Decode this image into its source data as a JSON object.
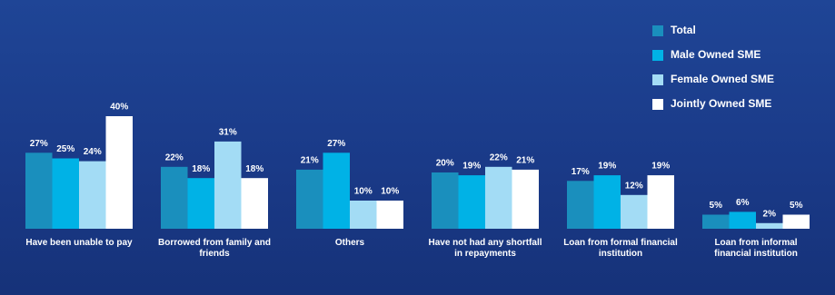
{
  "chart_data": {
    "type": "bar",
    "categories": [
      "Have been unable to pay",
      "Borrowed from family and friends",
      "Others",
      "Have not had any shortfall in repayments",
      "Loan from formal financial institution",
      "Loan from informal financial institution"
    ],
    "series": [
      {
        "name": "Total",
        "color": "#1a8fbd",
        "values": [
          27,
          22,
          21,
          20,
          17,
          5
        ],
        "value_labels": [
          "27%",
          "22%",
          "21%",
          "20%",
          "17%",
          "5%"
        ]
      },
      {
        "name": "Male Owned SME",
        "color": "#00b2e6",
        "values": [
          25,
          18,
          27,
          19,
          19,
          6
        ],
        "value_labels": [
          "25%",
          "18%",
          "27%",
          "19%",
          "19%",
          "6%"
        ]
      },
      {
        "name": "Female Owned SME",
        "color": "#a3dcf5",
        "values": [
          24,
          31,
          10,
          22,
          12,
          2
        ],
        "value_labels": [
          "24%",
          "31%",
          "10%",
          "22%",
          "12%",
          "2%"
        ]
      },
      {
        "name": "Jointly Owned SME",
        "color": "#ffffff",
        "values": [
          40,
          18,
          10,
          21,
          19,
          5
        ],
        "value_labels": [
          "40%",
          "18%",
          "10%",
          "21%",
          "19%",
          "5%"
        ]
      }
    ]
  }
}
